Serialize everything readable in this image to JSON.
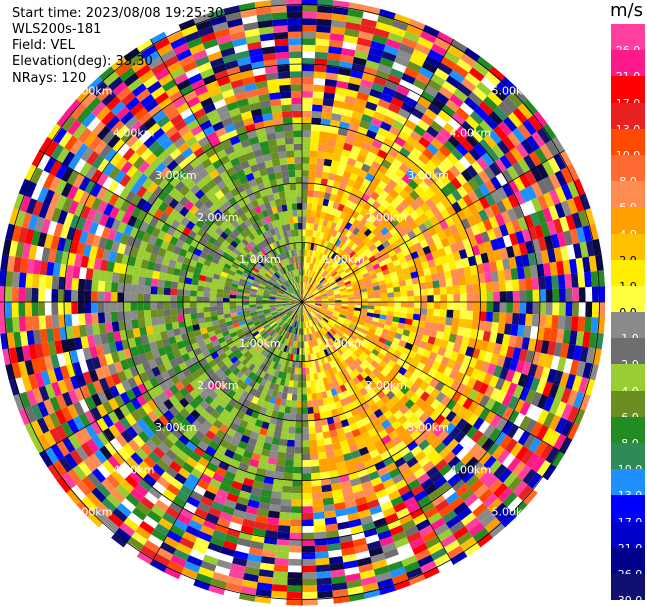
{
  "header": {
    "start_time": "Start time: 2023/08/08 19:25:30",
    "instrument": "WLS200s-181",
    "field": "Field: VEL",
    "elevation": "Elevation(deg): 35.30",
    "nrays": "NRays: 120"
  },
  "colorbar": {
    "unit": "m/s",
    "ticks": [
      "26.0",
      "21.0",
      "17.0",
      "13.0",
      "10.0",
      "8.0",
      "6.0",
      "4.0",
      "2.0",
      "1.0",
      "0.0",
      "-1.0",
      "-2.0",
      "-4.0",
      "-6.0",
      "-8.0",
      "-10.0",
      "-13.0",
      "-17.0",
      "-21.0",
      "-26.0",
      "-30.0"
    ],
    "colors": [
      "#ff3fa0",
      "#ff1a8c",
      "#ff0000",
      "#e82020",
      "#ff4a00",
      "#ff6a30",
      "#ff8c50",
      "#ffa000",
      "#ffc000",
      "#ffee00",
      "#ffff40",
      "#8a8a8a",
      "#6e6e6e",
      "#9acd32",
      "#6b8e23",
      "#228b22",
      "#2e8b57",
      "#1e90ff",
      "#0000ff",
      "#0000cd",
      "#00008b",
      "#101070",
      "#0a0a40"
    ]
  },
  "chart_data": {
    "type": "heatmap",
    "title": "",
    "projection": "polar (PPI scan)",
    "nrays": 120,
    "range_ring_labels": [
      "1.00km",
      "2.00km",
      "3.00km",
      "4.00km",
      "5.00km"
    ],
    "range_rings_km": [
      1,
      2,
      3,
      4,
      5
    ],
    "max_range_km": 5.1,
    "value_unit": "m/s",
    "value_range": [
      -30,
      26
    ],
    "pattern": {
      "inner_east_sector": "positive velocities 1.0 to 6.0 m/s (yellow/orange)",
      "inner_west_sector": "negative velocities -1.0 to -6.0 m/s (green/grey)",
      "outer_rings": "noisy values across full scale"
    }
  }
}
